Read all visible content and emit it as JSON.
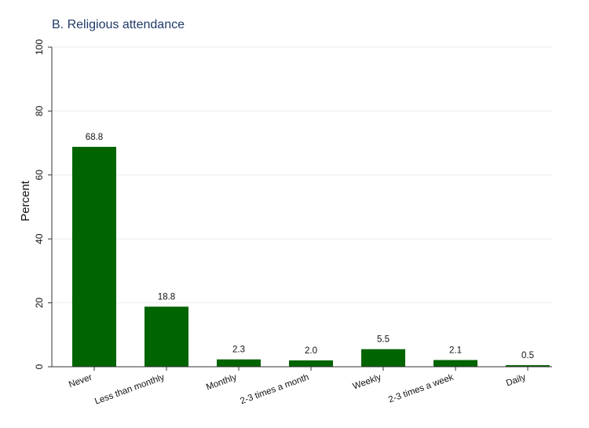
{
  "chart_data": {
    "type": "bar",
    "title": "B. Religious attendance",
    "ylabel": "Percent",
    "xlabel": "",
    "categories": [
      "Never",
      "Less than monthly",
      "Monthly",
      "2-3 times a month",
      "Weekly",
      "2-3 times a week",
      "Daily"
    ],
    "values": [
      68.8,
      18.8,
      2.3,
      2.0,
      5.5,
      2.1,
      0.5
    ],
    "value_labels": [
      "68.8",
      "18.8",
      "2.3",
      "2.0",
      "5.5",
      "2.1",
      "0.5"
    ],
    "yticks": [
      0,
      20,
      40,
      60,
      80,
      100
    ],
    "ytick_labels": [
      "0",
      "20",
      "40",
      "60",
      "80",
      "100"
    ],
    "ylim": [
      0,
      100
    ],
    "grid": true,
    "legend": "none",
    "colors": {
      "bar": "#006400",
      "grid": "#e6eef3",
      "axis": "#333333",
      "title": "#1f3a66"
    }
  }
}
